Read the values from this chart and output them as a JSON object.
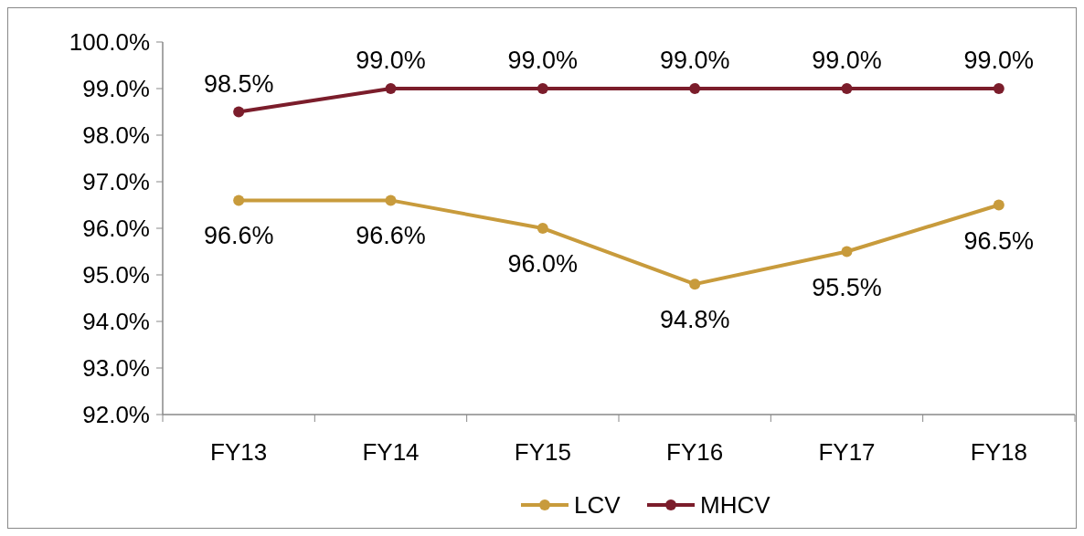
{
  "chart_data": {
    "type": "line",
    "categories": [
      "FY13",
      "FY14",
      "FY15",
      "FY16",
      "FY17",
      "FY18"
    ],
    "series": [
      {
        "name": "LCV",
        "color": "#c89b3c",
        "values": [
          96.6,
          96.6,
          96.0,
          94.8,
          95.5,
          96.5
        ],
        "value_labels": [
          "96.6%",
          "96.6%",
          "96.0%",
          "94.8%",
          "95.5%",
          "96.5%"
        ]
      },
      {
        "name": "MHCV",
        "color": "#7b1d2b",
        "values": [
          98.5,
          99.0,
          99.0,
          99.0,
          99.0,
          99.0
        ],
        "value_labels": [
          "98.5%",
          "99.0%",
          "99.0%",
          "99.0%",
          "99.0%",
          "99.0%"
        ]
      }
    ],
    "ylim": [
      92,
      100
    ],
    "yticks": [
      {
        "value": 92,
        "label": "92.0%"
      },
      {
        "value": 93,
        "label": "93.0%"
      },
      {
        "value": 94,
        "label": "94.0%"
      },
      {
        "value": 95,
        "label": "95.0%"
      },
      {
        "value": 96,
        "label": "96.0%"
      },
      {
        "value": 97,
        "label": "97.0%"
      },
      {
        "value": 98,
        "label": "98.0%"
      },
      {
        "value": 99,
        "label": "99.0%"
      },
      {
        "value": 100,
        "label": "100.0%"
      }
    ],
    "grid": false,
    "legend": "bottom",
    "marker": "circle",
    "line_style": "solid"
  }
}
